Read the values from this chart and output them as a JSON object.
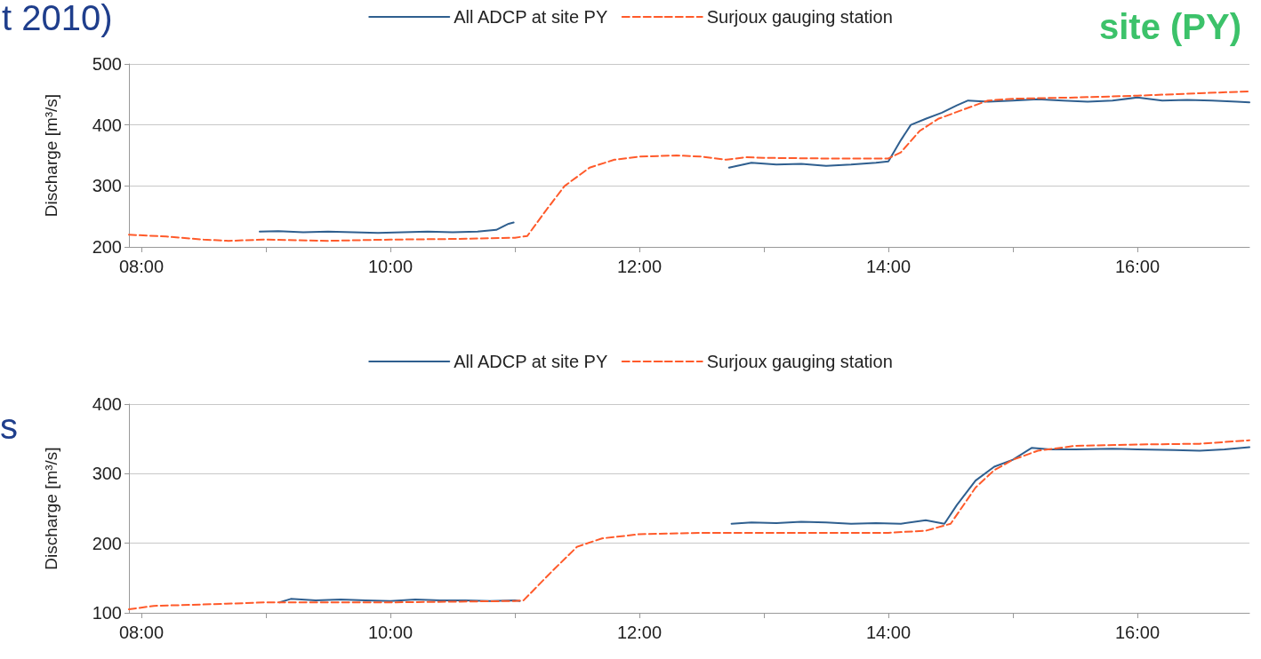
{
  "chart_data": [
    {
      "type": "line",
      "ylabel": "Discharge [m³/s]",
      "annotations": [
        "t 2010)",
        "site (PY)"
      ],
      "xlim": [
        7.9,
        16.9
      ],
      "xticks": [
        {
          "value": 8,
          "label": "08:00"
        },
        {
          "value": 9,
          "label": null
        },
        {
          "value": 10,
          "label": "10:00"
        },
        {
          "value": 11,
          "label": null
        },
        {
          "value": 12,
          "label": "12:00"
        },
        {
          "value": 13,
          "label": null
        },
        {
          "value": 14,
          "label": "14:00"
        },
        {
          "value": 15,
          "label": null
        },
        {
          "value": 16,
          "label": "16:00"
        }
      ],
      "ylim": [
        200,
        500
      ],
      "yticks": [
        200,
        300,
        400,
        500
      ],
      "grid": "y",
      "legend": "top",
      "marker": "none",
      "series": [
        {
          "name": "All ADCP at site PY",
          "color": "#2f5f8f",
          "line_style": "solid",
          "x": [
            8.95,
            9.1,
            9.3,
            9.5,
            9.7,
            9.9,
            10.1,
            10.3,
            10.5,
            10.7,
            10.85,
            10.95,
            10.99,
            11.8,
            12.72,
            12.9,
            13.1,
            13.3,
            13.5,
            13.7,
            13.9,
            14.0,
            14.1,
            14.18,
            14.3,
            14.43,
            14.55,
            14.64,
            14.8,
            15.0,
            15.2,
            15.4,
            15.6,
            15.8,
            16.0,
            16.2,
            16.4,
            16.6,
            16.8,
            16.9
          ],
          "values": [
            225,
            226,
            224,
            225,
            224,
            223,
            224,
            225,
            224,
            225,
            228,
            238,
            240,
            null,
            330,
            338,
            335,
            336,
            333,
            335,
            338,
            340,
            375,
            400,
            410,
            420,
            432,
            440,
            438,
            440,
            442,
            440,
            438,
            440,
            445,
            440,
            441,
            440,
            438,
            437
          ]
        },
        {
          "name": "Surjoux gauging station",
          "color": "#ff5a2a",
          "line_style": "dashed",
          "x": [
            7.9,
            8.2,
            8.5,
            8.7,
            9.0,
            9.5,
            10.0,
            10.5,
            11.0,
            11.1,
            11.25,
            11.4,
            11.6,
            11.8,
            12.0,
            12.3,
            12.5,
            12.7,
            12.85,
            13.0,
            13.5,
            14.0,
            14.1,
            14.25,
            14.4,
            14.6,
            14.8,
            15.0,
            15.5,
            16.0,
            16.5,
            16.9
          ],
          "values": [
            220,
            217,
            212,
            210,
            212,
            210,
            212,
            213,
            215,
            218,
            260,
            300,
            330,
            343,
            348,
            350,
            348,
            343,
            347,
            346,
            345,
            345,
            355,
            390,
            410,
            425,
            440,
            443,
            445,
            448,
            452,
            455
          ]
        }
      ]
    },
    {
      "type": "line",
      "ylabel": "Discharge [m³/s]",
      "annotations": [
        "s"
      ],
      "xlim": [
        7.9,
        16.9
      ],
      "xticks": [
        {
          "value": 8,
          "label": "08:00"
        },
        {
          "value": 9,
          "label": null
        },
        {
          "value": 10,
          "label": "10:00"
        },
        {
          "value": 11,
          "label": null
        },
        {
          "value": 12,
          "label": "12:00"
        },
        {
          "value": 13,
          "label": null
        },
        {
          "value": 14,
          "label": "14:00"
        },
        {
          "value": 15,
          "label": null
        },
        {
          "value": 16,
          "label": "16:00"
        }
      ],
      "ylim": [
        100,
        400
      ],
      "yticks": [
        100,
        200,
        300,
        400
      ],
      "grid": "y",
      "legend": "top",
      "marker": "none",
      "series": [
        {
          "name": "All ADCP at site PY",
          "color": "#2f5f8f",
          "line_style": "solid",
          "x": [
            9.11,
            9.2,
            9.4,
            9.6,
            9.8,
            10.0,
            10.2,
            10.4,
            10.6,
            10.8,
            11.0,
            11.04,
            12.0,
            12.74,
            12.9,
            13.1,
            13.3,
            13.5,
            13.7,
            13.9,
            14.1,
            14.3,
            14.45,
            14.55,
            14.7,
            14.85,
            15.0,
            15.15,
            15.3,
            15.5,
            15.8,
            16.0,
            16.3,
            16.5,
            16.7,
            16.9
          ],
          "values": [
            115,
            120,
            118,
            119,
            118,
            117,
            119,
            118,
            118,
            117,
            118,
            117,
            null,
            228,
            230,
            229,
            231,
            230,
            228,
            229,
            228,
            233,
            228,
            255,
            290,
            310,
            320,
            337,
            335,
            335,
            336,
            335,
            334,
            333,
            335,
            338
          ]
        },
        {
          "name": "Surjoux gauging station",
          "color": "#ff5a2a",
          "line_style": "dashed",
          "x": [
            7.9,
            8.1,
            8.5,
            9.0,
            10.0,
            11.0,
            11.07,
            11.3,
            11.5,
            11.7,
            12.0,
            12.5,
            13.0,
            13.5,
            14.0,
            14.3,
            14.5,
            14.7,
            14.85,
            15.0,
            15.2,
            15.5,
            16.0,
            16.5,
            16.9
          ],
          "values": [
            105,
            110,
            112,
            115,
            115,
            117,
            118,
            160,
            195,
            207,
            213,
            215,
            215,
            215,
            215,
            218,
            228,
            280,
            305,
            320,
            333,
            340,
            342,
            343,
            348
          ]
        }
      ]
    }
  ]
}
